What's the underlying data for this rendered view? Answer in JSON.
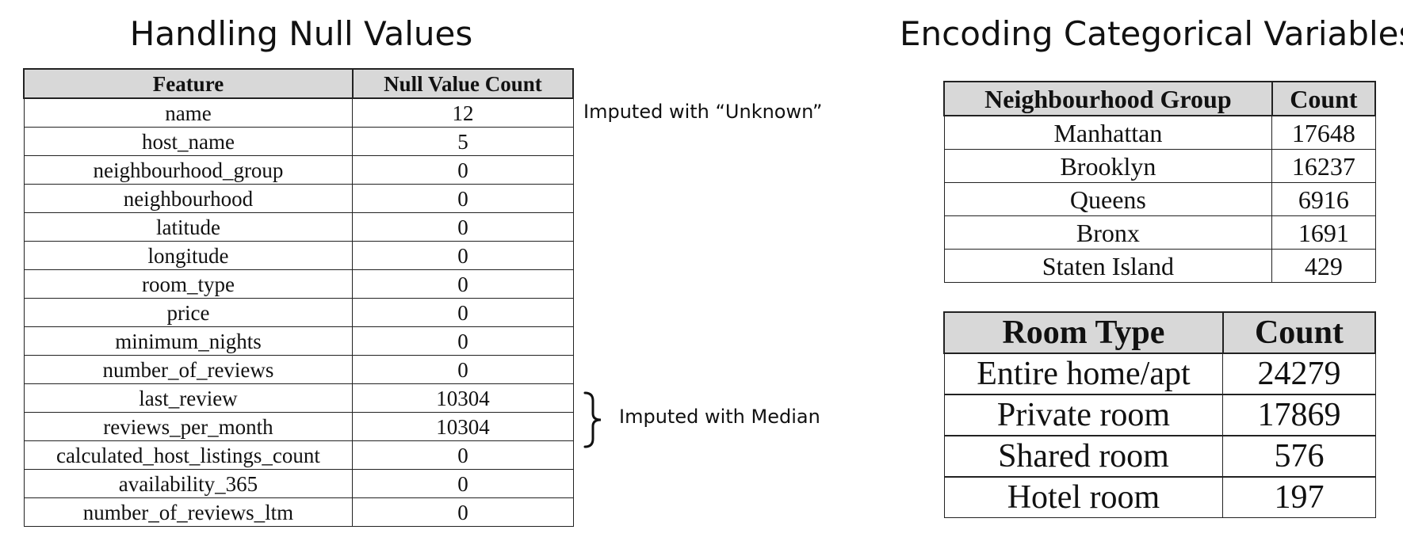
{
  "null_section": {
    "title": "Handling Null Values",
    "headers": [
      "Feature",
      "Null Value Count"
    ],
    "rows": [
      {
        "feature": "name",
        "count": "12"
      },
      {
        "feature": "host_name",
        "count": "5"
      },
      {
        "feature": "neighbourhood_group",
        "count": "0"
      },
      {
        "feature": "neighbourhood",
        "count": "0"
      },
      {
        "feature": "latitude",
        "count": "0"
      },
      {
        "feature": "longitude",
        "count": "0"
      },
      {
        "feature": "room_type",
        "count": "0"
      },
      {
        "feature": "price",
        "count": "0"
      },
      {
        "feature": "minimum_nights",
        "count": "0"
      },
      {
        "feature": "number_of_reviews",
        "count": "0"
      },
      {
        "feature": "last_review",
        "count": "10304"
      },
      {
        "feature": "reviews_per_month",
        "count": "10304"
      },
      {
        "feature": "calculated_host_listings_count",
        "count": "0"
      },
      {
        "feature": "availability_365",
        "count": "0"
      },
      {
        "feature": "number_of_reviews_ltm",
        "count": "0"
      }
    ],
    "notes": {
      "unknown": "Imputed with “Unknown”",
      "median": "Imputed with Median"
    }
  },
  "categorical_section": {
    "title": "Encoding Categorical Variables",
    "neighbourhood_table": {
      "headers": [
        "Neighbourhood Group",
        "Count"
      ],
      "rows": [
        {
          "group": "Manhattan",
          "count": "17648"
        },
        {
          "group": "Brooklyn",
          "count": "16237"
        },
        {
          "group": "Queens",
          "count": "6916"
        },
        {
          "group": "Bronx",
          "count": "1691"
        },
        {
          "group": "Staten Island",
          "count": "429"
        }
      ]
    },
    "room_table": {
      "headers": [
        "Room Type",
        "Count"
      ],
      "rows": [
        {
          "type": "Entire home/apt",
          "count": "24279"
        },
        {
          "type": "Private room",
          "count": "17869"
        },
        {
          "type": "Shared room",
          "count": "576"
        },
        {
          "type": "Hotel room",
          "count": "197"
        }
      ]
    }
  }
}
